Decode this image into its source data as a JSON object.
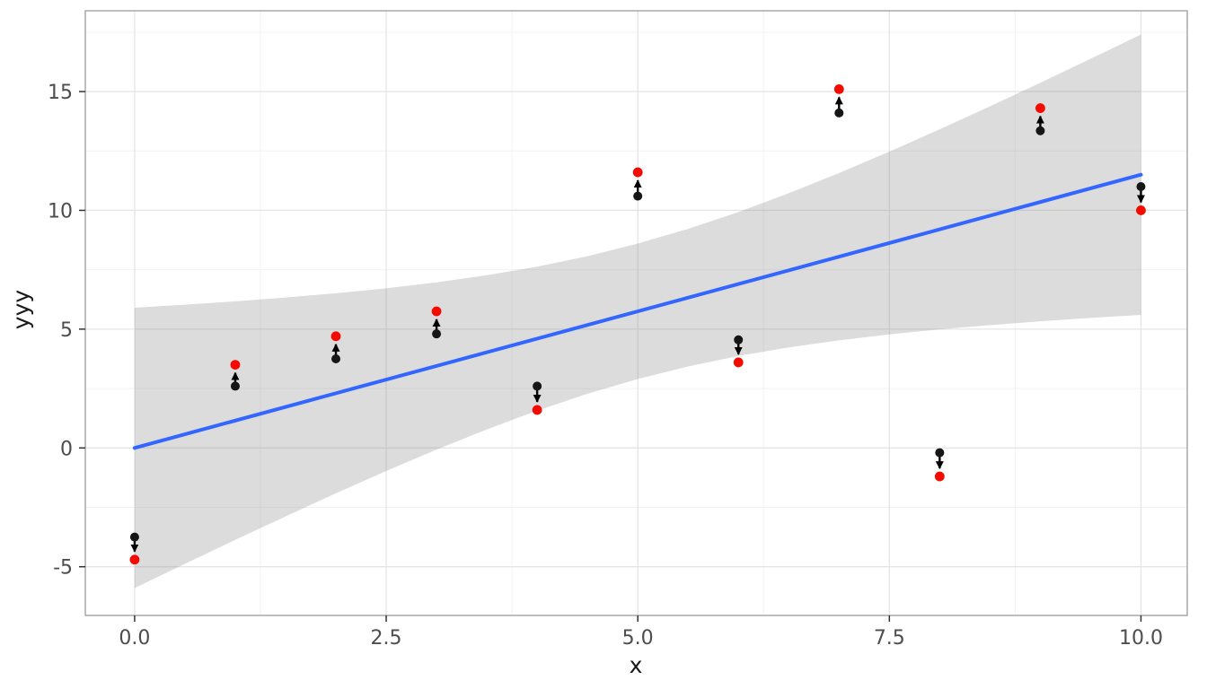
{
  "figure": {
    "kind": "ggplot-style scatter plot with regression line, confidence ribbon and shift arrows"
  },
  "axes": {
    "x_label": "x",
    "y_label": "yyy",
    "x_tick_labels": [
      "0.0",
      "2.5",
      "5.0",
      "7.5",
      "10.0"
    ],
    "x_tick_values": [
      0,
      2.5,
      5,
      7.5,
      10
    ],
    "x_minor_values": [
      1.25,
      3.75,
      6.25,
      8.75
    ],
    "y_tick_labels": [
      "-5",
      "0",
      "5",
      "10",
      "15"
    ],
    "y_tick_values": [
      -5,
      0,
      5,
      10,
      15
    ],
    "y_minor_values": [
      -2.5,
      2.5,
      7.5,
      12.5,
      17.5
    ],
    "x_range": [
      -0.49,
      10.46
    ],
    "y_range": [
      -7.05,
      18.4
    ]
  },
  "chart_data": {
    "type": "scatter",
    "title": "",
    "xlabel": "x",
    "ylabel": "yyy",
    "xlim": [
      -0.49,
      10.46
    ],
    "ylim": [
      -7.05,
      18.4
    ],
    "grid": true,
    "legend": false,
    "x": [
      0,
      1,
      2,
      3,
      4,
      5,
      6,
      7,
      8,
      9,
      10
    ],
    "series": [
      {
        "name": "original-points",
        "color": "#161616",
        "marker_radius": 5.0,
        "values": [
          -3.75,
          2.6,
          3.75,
          4.8,
          2.6,
          10.6,
          4.55,
          14.1,
          -0.2,
          13.35,
          11.0
        ]
      },
      {
        "name": "shifted-points",
        "color": "#f40b00",
        "marker_radius": 5.4,
        "values": [
          -4.7,
          3.5,
          4.7,
          5.75,
          1.6,
          11.6,
          3.6,
          15.1,
          -1.2,
          14.3,
          10.0
        ]
      }
    ],
    "arrows": {
      "from_series": "original-points",
      "to_series": "shifted-points",
      "color": "#000000",
      "width": 2.4
    },
    "regression_line": {
      "color": "#3366FF",
      "width": 4,
      "x": [
        0,
        10
      ],
      "y": [
        0,
        11.5
      ]
    },
    "confidence_ribbon": {
      "fill": "#808080",
      "opacity": 0.28,
      "x": [
        0,
        0.5,
        1,
        1.5,
        2,
        2.5,
        3,
        3.5,
        4,
        4.5,
        5,
        5.5,
        6,
        6.5,
        7,
        7.5,
        8,
        8.5,
        9,
        9.5,
        10
      ],
      "upper": [
        5.9,
        6.03,
        6.17,
        6.33,
        6.51,
        6.72,
        6.97,
        7.27,
        7.63,
        8.07,
        8.6,
        9.22,
        9.93,
        10.72,
        11.57,
        12.47,
        13.41,
        14.38,
        15.37,
        16.38,
        17.4
      ],
      "lower": [
        -5.9,
        -4.88,
        -3.87,
        -2.88,
        -1.91,
        -0.97,
        -0.07,
        0.78,
        1.57,
        2.28,
        2.9,
        3.43,
        3.87,
        4.23,
        4.53,
        4.78,
        4.99,
        5.17,
        5.33,
        5.47,
        5.6
      ]
    }
  },
  "style": {
    "panel_background": "#ffffff",
    "panel_border": "#a3a3a3",
    "grid_major_color": "#e5e5e5",
    "grid_minor_color": "#f2f2f2",
    "tick_mark_color": "#333333",
    "tick_label_color": "#4d4d4d",
    "axis_title_color": "#1a1a1a"
  }
}
